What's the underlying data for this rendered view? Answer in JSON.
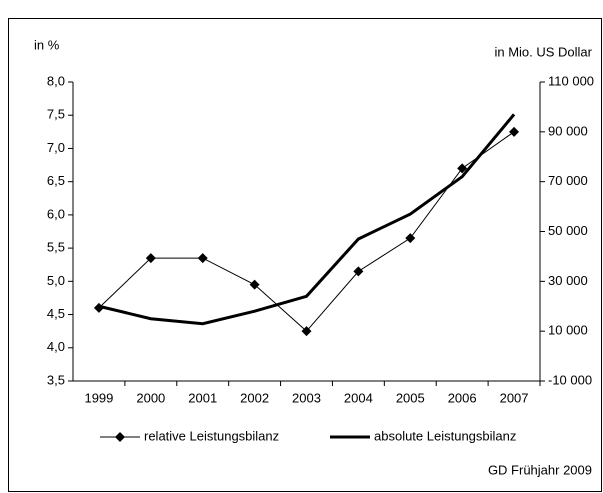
{
  "chart_data": {
    "type": "line",
    "y_label": "in %",
    "y2_label": "in Mio. US Dollar",
    "categories": [
      "1999",
      "2000",
      "2001",
      "2002",
      "2003",
      "2004",
      "2005",
      "2006",
      "2007"
    ],
    "series": [
      {
        "name": "relative Leistungsbilanz",
        "color": "#000000",
        "marker": "diamond",
        "values": [
          4.6,
          5.35,
          5.35,
          4.95,
          4.25,
          5.15,
          5.65,
          6.7,
          7.25
        ]
      },
      {
        "name": "absolute Leistungsbilanz",
        "color": "#000000",
        "axis": "y2",
        "values": [
          20000,
          15000,
          13000,
          18000,
          24000,
          47000,
          57000,
          72000,
          97000
        ]
      }
    ],
    "ylim": [
      3.5,
      8.0
    ],
    "yticks": [
      {
        "value": 3.5,
        "label": "3,5"
      },
      {
        "value": 4.0,
        "label": "4,0"
      },
      {
        "value": 4.5,
        "label": "4,5"
      },
      {
        "value": 5.0,
        "label": "5,0"
      },
      {
        "value": 5.5,
        "label": "5,5"
      },
      {
        "value": 6.0,
        "label": "6,0"
      },
      {
        "value": 6.5,
        "label": "6,5"
      },
      {
        "value": 7.0,
        "label": "7,0"
      },
      {
        "value": 7.5,
        "label": "7,5"
      },
      {
        "value": 8.0,
        "label": "8,0"
      }
    ],
    "y2lim": [
      -10000,
      110000
    ],
    "y2ticks": [
      {
        "value": -10000,
        "label": "-10 000"
      },
      {
        "value": 10000,
        "label": "10 000"
      },
      {
        "value": 30000,
        "label": "30 000"
      },
      {
        "value": 50000,
        "label": "50 000"
      },
      {
        "value": 70000,
        "label": "70 000"
      },
      {
        "value": 90000,
        "label": "90 000"
      },
      {
        "value": 110000,
        "label": "110 000"
      }
    ],
    "source": "GD Frühjahr 2009",
    "grid": false,
    "legend": "bottom"
  }
}
